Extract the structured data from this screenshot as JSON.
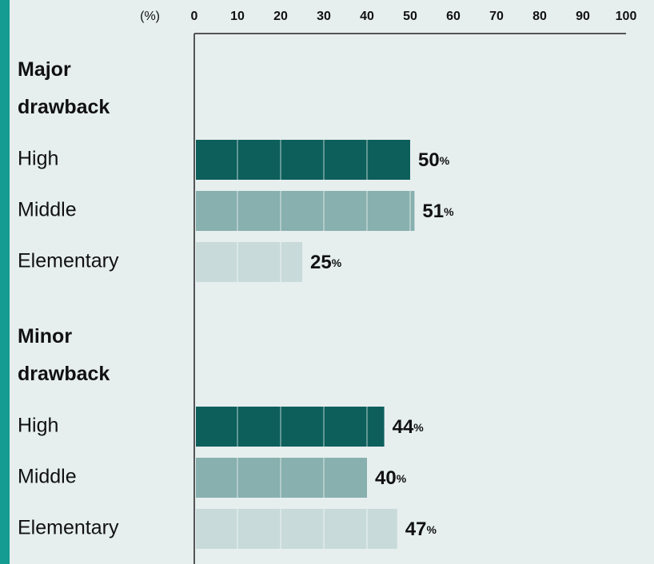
{
  "chart_data": {
    "type": "bar",
    "orientation": "horizontal",
    "axis_label": "(%)",
    "categories": [
      "High",
      "Middle",
      "Elementary"
    ],
    "colors": [
      "#0d5f5b",
      "#87b0ae",
      "#c8dada"
    ],
    "series": [
      {
        "name": "Major drawback",
        "values": [
          50,
          51,
          25
        ],
        "value_labels": [
          "50%",
          "51%",
          "25%"
        ]
      },
      {
        "name": "Minor drawback",
        "values": [
          44,
          40,
          47
        ],
        "value_labels": [
          "44%",
          "40%",
          "47%"
        ]
      }
    ],
    "xlim": [
      0,
      100
    ],
    "xticks": [
      0,
      10,
      20,
      30,
      40,
      50,
      60,
      70,
      80,
      90,
      100
    ]
  }
}
